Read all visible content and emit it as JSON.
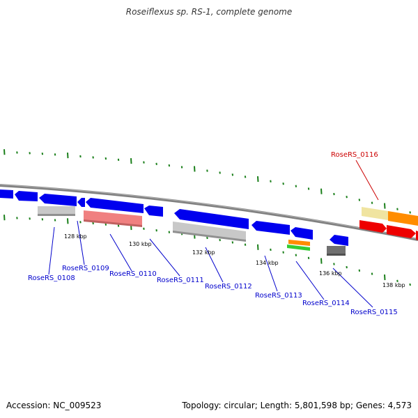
{
  "header": {
    "title": "Roseiflexus sp. RS-1, complete genome"
  },
  "footer": {
    "accession": "Accession: NC_009523",
    "summary": "Topology: circular; Length: 5,801,598 bp; Genes: 4,573"
  },
  "colors": {
    "backbone": "#808080",
    "tick": "#1a7f1a",
    "label_default": "#0000cc",
    "label_highlight": "#cc0000"
  },
  "scale_labels": [
    {
      "kbp": 128,
      "text": "128 kbp"
    },
    {
      "kbp": 130,
      "text": "130 kbp"
    },
    {
      "kbp": 132,
      "text": "132 kbp"
    },
    {
      "kbp": 134,
      "text": "134 kbp"
    },
    {
      "kbp": 136,
      "text": "136 kbp"
    },
    {
      "kbp": 138,
      "text": "138 kbp"
    }
  ],
  "gene_labels": [
    {
      "id": "RoseRS_0108",
      "text": "RoseRS_0108",
      "highlight": false
    },
    {
      "id": "RoseRS_0109",
      "text": "RoseRS_0109",
      "highlight": false
    },
    {
      "id": "RoseRS_0110",
      "text": "RoseRS_0110",
      "highlight": false
    },
    {
      "id": "RoseRS_0111",
      "text": "RoseRS_0111",
      "highlight": false
    },
    {
      "id": "RoseRS_0112",
      "text": "RoseRS_0112",
      "highlight": false
    },
    {
      "id": "RoseRS_0113",
      "text": "RoseRS_0113",
      "highlight": false
    },
    {
      "id": "RoseRS_0114",
      "text": "RoseRS_0114",
      "highlight": false
    },
    {
      "id": "RoseRS_0115",
      "text": "RoseRS_0115",
      "highlight": false
    },
    {
      "id": "RoseRS_0116",
      "text": "RoseRS_0116",
      "highlight": true
    }
  ]
}
